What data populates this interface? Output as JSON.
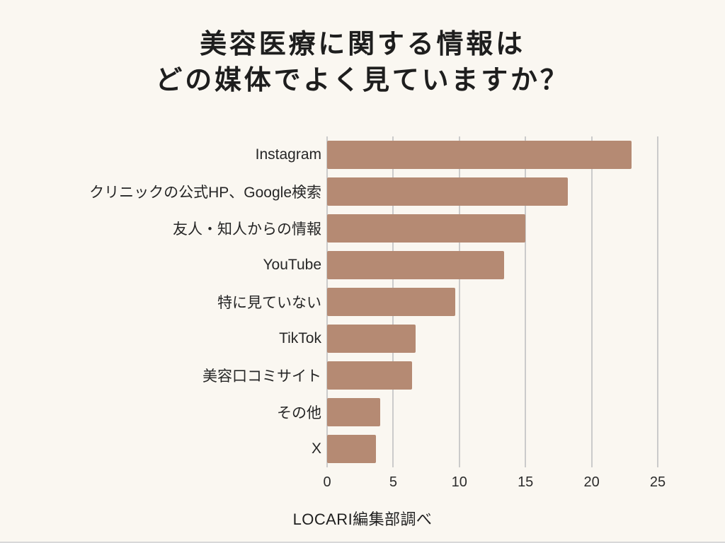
{
  "title": {
    "line1": "美容医療に関する情報は",
    "line2": "どの媒体でよく見ていますか？"
  },
  "footer": {
    "source": "LOCARI編集部調べ"
  },
  "colors": {
    "background": "#FAF7F1",
    "bar": "#B58A73",
    "gridline": "#CBCBCB",
    "title_text": "#1E1E1E",
    "bottom_line": "#D8D8D8"
  },
  "chart_data": {
    "type": "bar",
    "orientation": "horizontal",
    "title": "美容医療に関する情報は どの媒体でよく見ていますか？",
    "categories": [
      "Instagram",
      "クリニックの公式HP、Google検索",
      "友人・知人からの情報",
      "YouTube",
      "特に見ていない",
      "TikTok",
      "美容口コミサイト",
      "その他",
      "X"
    ],
    "values": [
      23,
      18.2,
      15,
      13.4,
      9.7,
      6.7,
      6.4,
      4,
      3.7
    ],
    "xlabel": "",
    "ylabel": "",
    "xlim": [
      0,
      25
    ],
    "xticks": [
      0,
      5,
      10,
      15,
      20,
      25
    ],
    "grid": true,
    "legend": "none",
    "source": "LOCARI編集部調べ"
  }
}
